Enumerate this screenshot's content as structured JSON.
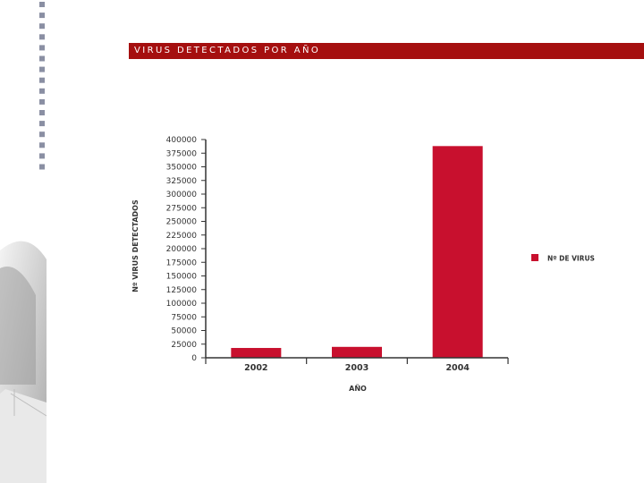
{
  "header": {
    "title": "VIRUS DETECTADOS POR AÑO"
  },
  "colors": {
    "title_bar": "#a50f0f",
    "bar": "#c8102e",
    "axis": "#333333",
    "dots": "#8a8fa3"
  },
  "chart_data": {
    "type": "bar",
    "categories": [
      "2002",
      "2003",
      "2004"
    ],
    "series": [
      {
        "name": "Nº DE VIRUS",
        "values": [
          18000,
          20000,
          388000
        ]
      }
    ],
    "title": "VIRUS DETECTADOS POR AÑO",
    "xlabel": "AÑO",
    "ylabel": "Nº VIRUS DETECTADOS",
    "ylim": [
      0,
      400000
    ],
    "yticks": [
      "0",
      "25000",
      "50000",
      "75000",
      "100000",
      "125000",
      "150000",
      "175000",
      "200000",
      "225000",
      "250000",
      "275000",
      "300000",
      "325000",
      "350000",
      "375000",
      "400000"
    ],
    "ytick_step": 25000,
    "grid": false,
    "legend_position": "right"
  }
}
